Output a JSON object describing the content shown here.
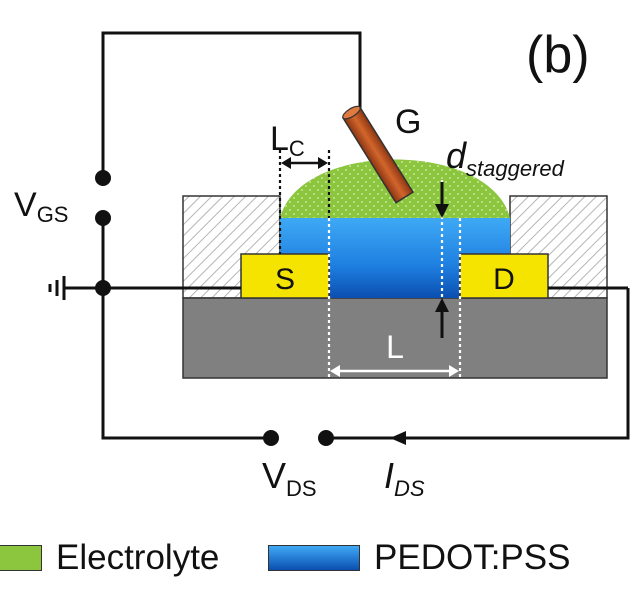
{
  "panel_label": "(b)",
  "labels": {
    "gate": "G",
    "source": "S",
    "drain": "D",
    "channel_length": "L",
    "contact_length_main": "L",
    "contact_length_sub": "C",
    "d_main": "d",
    "d_sub": "staggered",
    "vgs_main": "V",
    "vgs_sub": "GS",
    "vds_main": "V",
    "vds_sub": "DS",
    "ids_main": "I",
    "ids_sub": "DS"
  },
  "legend": [
    {
      "label": "Electrolyte",
      "color": "#8cc63f"
    },
    {
      "label": "PEDOT:PSS",
      "color": "#1e88e5"
    }
  ],
  "colors": {
    "electrolyte": "#8cc63f",
    "pedot": "#1e88e5",
    "electrode": "#f5e400",
    "substrate": "#808080",
    "gate_wire": "#c1531f"
  }
}
